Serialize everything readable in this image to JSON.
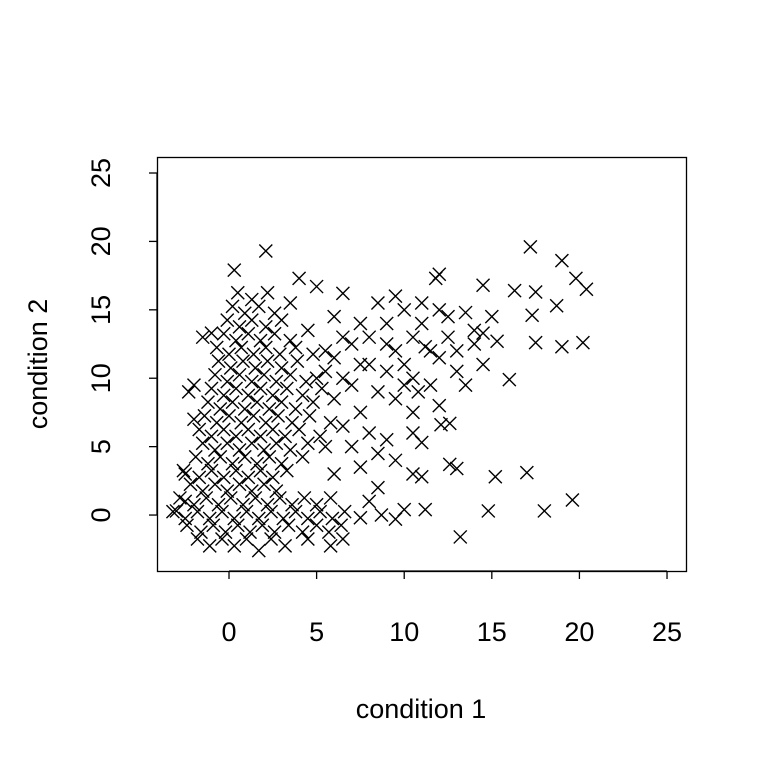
{
  "chart_data": {
    "type": "scatter",
    "xlabel": "condition 1",
    "ylabel": "condition 2",
    "color": "#000000",
    "xlim": [
      -4.11,
      26.14
    ],
    "ylim": [
      -4.09,
      26.17
    ],
    "xticks": [
      0,
      5,
      10,
      15,
      20,
      25
    ],
    "yticks": [
      0,
      5,
      10,
      15,
      20,
      25
    ],
    "x": [
      -1.8,
      -1.1,
      -0.4,
      0.3,
      1.0,
      1.7,
      2.4,
      3.2,
      4.5,
      5.8,
      6.5,
      -2.4,
      -1.6,
      -0.9,
      -0.2,
      0.5,
      1.2,
      1.9,
      2.6,
      3.4,
      4.2,
      5.0,
      5.7,
      6.4,
      -3.2,
      -2.5,
      -1.8,
      -1.1,
      -0.4,
      0.3,
      1.0,
      1.7,
      2.4,
      3.1,
      3.8,
      4.5,
      5.2,
      5.9,
      6.6,
      -2.8,
      -2.0,
      -1.3,
      -0.6,
      0.1,
      0.8,
      1.5,
      2.2,
      2.9,
      3.6,
      4.3,
      5.0,
      5.8,
      -2.2,
      -1.5,
      -0.8,
      -0.1,
      0.6,
      1.3,
      2.0,
      2.7,
      -2.6,
      -1.7,
      -1.0,
      -0.3,
      0.4,
      1.1,
      1.8,
      2.5,
      3.3,
      -1.9,
      -1.2,
      -0.5,
      0.2,
      0.9,
      1.6,
      2.3,
      3.0,
      4.2,
      -1.5,
      -0.8,
      -0.1,
      0.6,
      1.3,
      2.0,
      2.7,
      3.5,
      4.5,
      -1.7,
      -1.0,
      -0.3,
      0.4,
      1.1,
      1.8,
      2.5,
      3.2,
      4.0,
      5.2,
      -1.4,
      -0.7,
      0.0,
      0.7,
      1.4,
      2.1,
      2.8,
      3.6,
      4.6,
      5.8,
      -1.2,
      -0.5,
      0.2,
      0.9,
      1.6,
      2.3,
      3.0,
      3.8,
      4.8,
      -1.0,
      -0.3,
      0.4,
      1.1,
      1.8,
      2.5,
      3.3,
      4.2,
      5.3,
      -0.8,
      -0.1,
      0.6,
      1.3,
      2.0,
      2.7,
      3.5,
      4.4,
      -0.6,
      0.1,
      0.8,
      1.5,
      2.2,
      3.0,
      3.9,
      -0.7,
      0.0,
      0.7,
      1.4,
      2.1,
      2.9,
      3.8,
      4.8,
      -0.3,
      0.4,
      1.1,
      1.8,
      2.6,
      3.5,
      -0.1,
      0.6,
      1.3,
      2.1,
      3.0,
      0.2,
      0.9,
      1.7,
      2.6,
      0.5,
      1.3,
      2.2,
      -3.0,
      -2.5,
      -2.5,
      -2.3,
      -2.0,
      -2.0,
      -1.5,
      -1.0,
      5,
      6,
      7,
      8,
      9,
      9.5,
      10,
      8.5,
      6.5,
      5.5,
      4.5,
      4,
      5,
      6.5,
      3.5,
      6,
      7.5,
      8,
      9,
      10,
      10.5,
      11,
      11.5,
      9.5,
      10,
      8.5,
      7,
      6,
      7.5,
      8,
      9,
      10.5,
      6.5,
      5.5,
      7,
      8.5,
      9.5,
      6,
      7.5,
      8.5,
      5.5,
      6.5,
      7.5,
      9,
      10.5,
      12,
      11.5,
      13,
      12.5,
      14,
      14.5,
      14,
      13.5,
      11,
      12,
      9.5,
      17.2,
      19,
      19.8,
      20.4,
      17.5,
      18.7,
      17.3,
      17.5,
      19,
      20.2,
      16,
      17,
      19.6,
      18,
      15.2,
      14.8,
      13.2,
      12.6,
      13,
      14.5,
      12,
      11.8,
      2.1,
      0.3,
      16.3,
      15,
      14.5,
      13.5,
      12.5,
      12,
      13,
      15.3,
      11,
      11,
      10.5,
      9.5,
      10,
      11.2,
      8.7,
      8,
      7.5,
      12.6,
      12.1,
      10.5,
      11.2,
      10.8
    ],
    "values": [
      -1.75,
      -2.25,
      -1.75,
      -2.25,
      -1.75,
      -2.6,
      -1.75,
      -2.25,
      -1.75,
      -2.25,
      -1.75,
      -0.75,
      -1.25,
      -0.75,
      -1.25,
      -0.75,
      -1.25,
      -0.75,
      -1.25,
      -0.75,
      -1.25,
      -0.75,
      -1.25,
      -0.75,
      0.25,
      -0.25,
      0.25,
      -0.25,
      0.25,
      -0.25,
      0.25,
      -0.25,
      0.25,
      -0.25,
      0.25,
      -0.25,
      0.25,
      -0.25,
      0.25,
      1.25,
      0.75,
      1.25,
      0.75,
      1.25,
      0.75,
      1.25,
      0.75,
      1.25,
      0.75,
      1.25,
      0.75,
      1.25,
      2.25,
      1.75,
      2.25,
      1.75,
      2.25,
      1.75,
      2.25,
      1.75,
      3.25,
      2.75,
      3.25,
      2.75,
      3.25,
      2.75,
      3.25,
      2.75,
      3.25,
      4.25,
      3.75,
      4.25,
      3.75,
      4.25,
      3.75,
      4.25,
      3.75,
      4.25,
      5.25,
      4.75,
      5.25,
      4.75,
      5.25,
      4.75,
      5.25,
      4.75,
      5.25,
      6.25,
      5.75,
      6.25,
      5.75,
      6.25,
      5.75,
      6.25,
      5.75,
      6.25,
      5.75,
      7.25,
      6.75,
      7.25,
      6.75,
      7.25,
      6.75,
      7.25,
      6.75,
      7.25,
      6.75,
      8.25,
      7.75,
      8.25,
      7.75,
      8.25,
      7.75,
      8.25,
      7.75,
      8.25,
      9.25,
      8.75,
      9.25,
      8.75,
      9.25,
      8.75,
      9.25,
      8.75,
      9.25,
      10.25,
      9.75,
      10.25,
      9.75,
      10.25,
      9.75,
      10.25,
      9.75,
      11.25,
      10.75,
      11.25,
      10.75,
      11.25,
      10.75,
      11.25,
      12.25,
      11.75,
      12.25,
      11.75,
      12.25,
      11.75,
      12.25,
      11.75,
      13.25,
      12.75,
      13.25,
      12.75,
      13.25,
      12.75,
      14.25,
      13.75,
      14.25,
      13.75,
      14.25,
      15.25,
      14.75,
      15.25,
      14.75,
      16.25,
      15.75,
      16.25,
      0.3,
      1,
      3,
      9,
      9.5,
      7,
      13,
      13.3,
      10,
      11.5,
      12.5,
      13,
      14,
      12,
      15,
      15.5,
      13,
      12,
      13.5,
      17.3,
      16.7,
      16.2,
      15.5,
      14.5,
      14,
      11,
      10.5,
      11,
      13,
      14,
      12,
      8.5,
      9.5,
      9,
      9.5,
      8.5,
      7.5,
      6,
      5.5,
      6,
      6.5,
      5,
      5,
      4.5,
      4,
      3,
      3.5,
      2,
      10.5,
      10,
      11,
      12.5,
      10,
      8,
      9.5,
      12,
      14.5,
      13.5,
      11,
      12.5,
      9.5,
      15.5,
      15,
      16,
      19.6,
      18.6,
      17.3,
      16.5,
      16.3,
      15.3,
      14.6,
      12.6,
      12.3,
      12.6,
      9.9,
      3.1,
      1.1,
      0.3,
      2.8,
      0.3,
      -1.6,
      3.7,
      3.4,
      16.8,
      17.6,
      17.3,
      19.3,
      17.9,
      16.4,
      14.5,
      13.3,
      14.8,
      13,
      11.5,
      10.5,
      12.7,
      5.3,
      2.8,
      3,
      -0.3,
      0.4,
      0.4,
      0,
      1,
      -0.2,
      6.7,
      6.6,
      7.5,
      12.3,
      9
    ]
  }
}
